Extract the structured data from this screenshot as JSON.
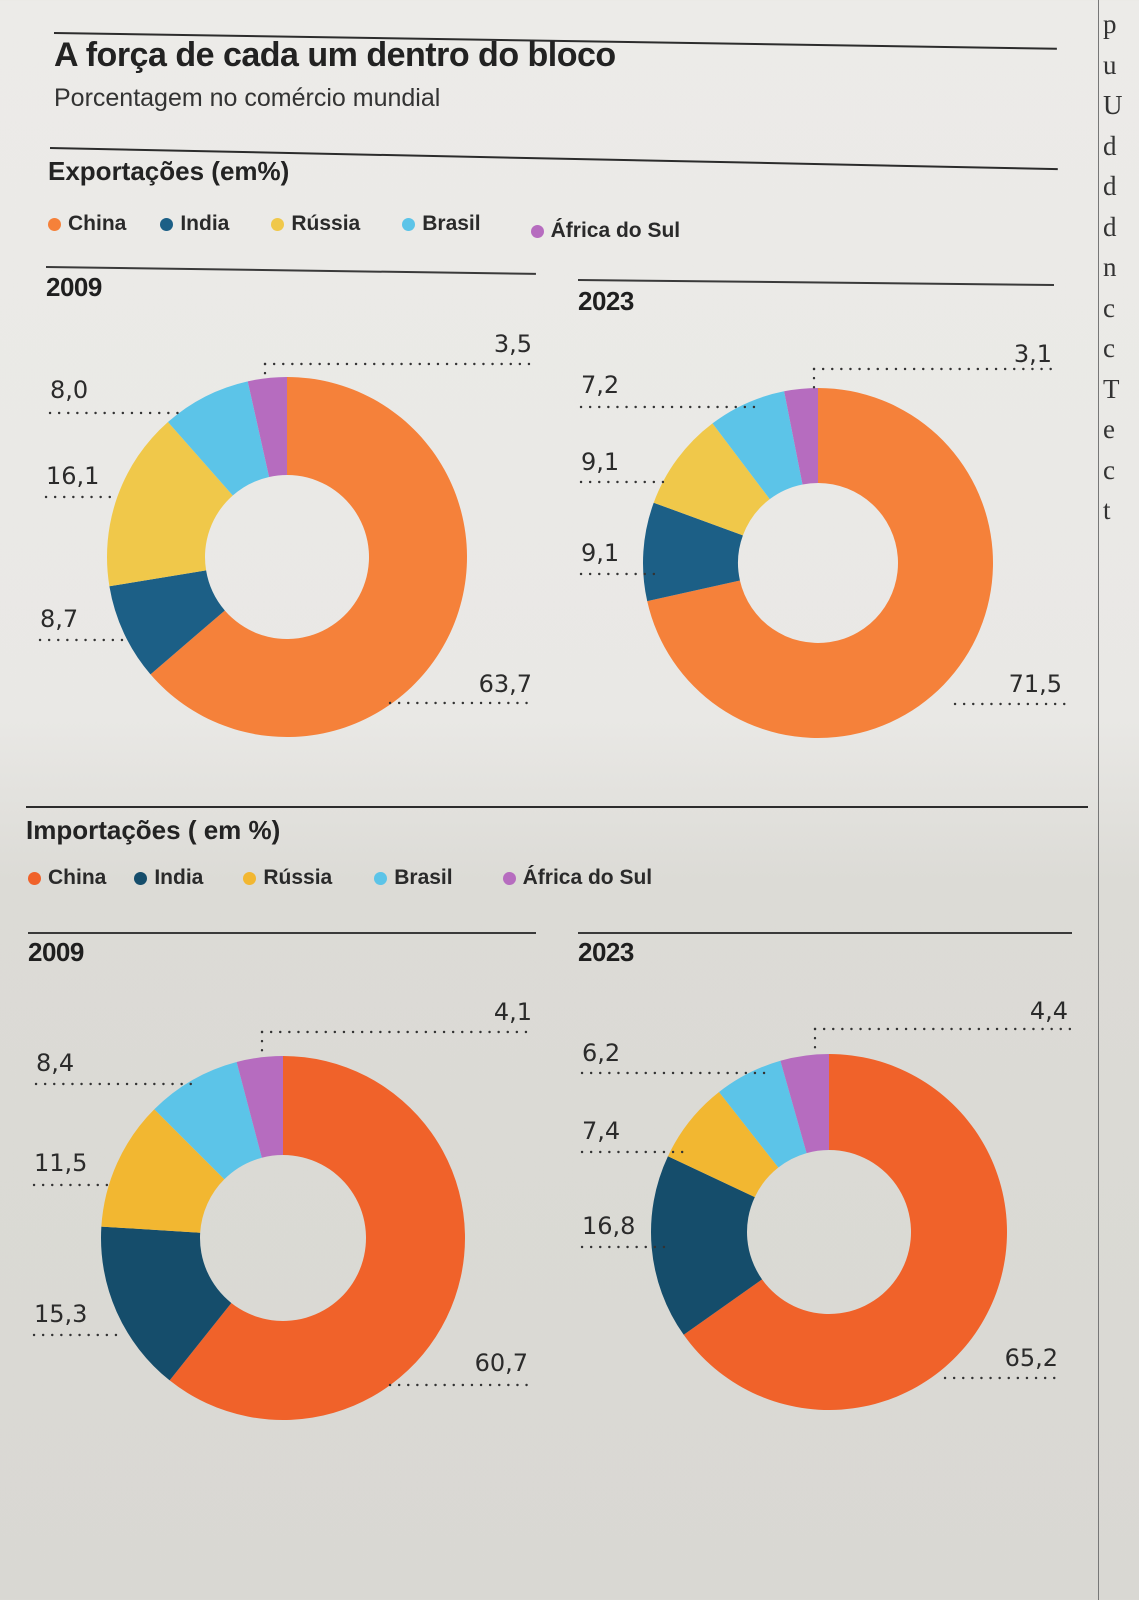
{
  "header": {
    "title": "A força de cada um dentro do bloco",
    "subtitle": "Porcentagem no comércio mundial"
  },
  "right_column_letters": [
    "p",
    "u",
    "U",
    "d",
    "d",
    "d",
    "n",
    "c",
    "c",
    "T",
    "e",
    "c",
    "t"
  ],
  "colors": {
    "China": "#f5813a",
    "India": "#1c5f86",
    "Rússia": "#f0c84a",
    "Brasil": "#5cc4e8",
    "África do Sul": "#b66cbf",
    "China_imports": "#f0622a",
    "India_imports": "#154d6b",
    "Rússia_imports": "#f2b731"
  },
  "sections": [
    {
      "title": "Exportações (em%)",
      "legend": [
        "China",
        "India",
        "Rússia",
        "Brasil",
        "África do Sul"
      ]
    },
    {
      "title": "Importações ( em %)",
      "legend": [
        "China",
        "India",
        "Rússia",
        "Brasil",
        "África do Sul"
      ]
    }
  ],
  "chart_data": [
    {
      "type": "pie",
      "variant": "donut",
      "title": "Exportações (em%) — 2009",
      "year": "2009",
      "categories": [
        "China",
        "India",
        "Rússia",
        "Brasil",
        "África do Sul"
      ],
      "values": [
        63.7,
        8.7,
        16.1,
        8.0,
        3.5
      ],
      "labels": [
        "63,7",
        "8,7",
        "16,1",
        "8,0",
        "3,5"
      ]
    },
    {
      "type": "pie",
      "variant": "donut",
      "title": "Exportações (em%) — 2023",
      "year": "2023",
      "categories": [
        "China",
        "India",
        "Rússia",
        "Brasil",
        "África do Sul"
      ],
      "values": [
        71.5,
        9.1,
        9.1,
        7.2,
        3.1
      ],
      "labels": [
        "71,5",
        "9,1",
        "9,1",
        "7,2",
        "3,1"
      ]
    },
    {
      "type": "pie",
      "variant": "donut",
      "title": "Importações ( em %) — 2009",
      "year": "2009",
      "categories": [
        "China",
        "India",
        "Rússia",
        "Brasil",
        "África do Sul"
      ],
      "values": [
        60.7,
        15.3,
        11.5,
        8.4,
        4.1
      ],
      "labels": [
        "60,7",
        "15,3",
        "11,5",
        "8,4",
        "4,1"
      ]
    },
    {
      "type": "pie",
      "variant": "donut",
      "title": "Importações ( em %) — 2023",
      "year": "2023",
      "categories": [
        "China",
        "India",
        "Rússia",
        "Brasil",
        "África do Sul"
      ],
      "values": [
        65.2,
        16.8,
        7.4,
        6.2,
        4.4
      ],
      "labels": [
        "65,2",
        "16,8",
        "7,4",
        "6,2",
        "4,4"
      ]
    }
  ]
}
